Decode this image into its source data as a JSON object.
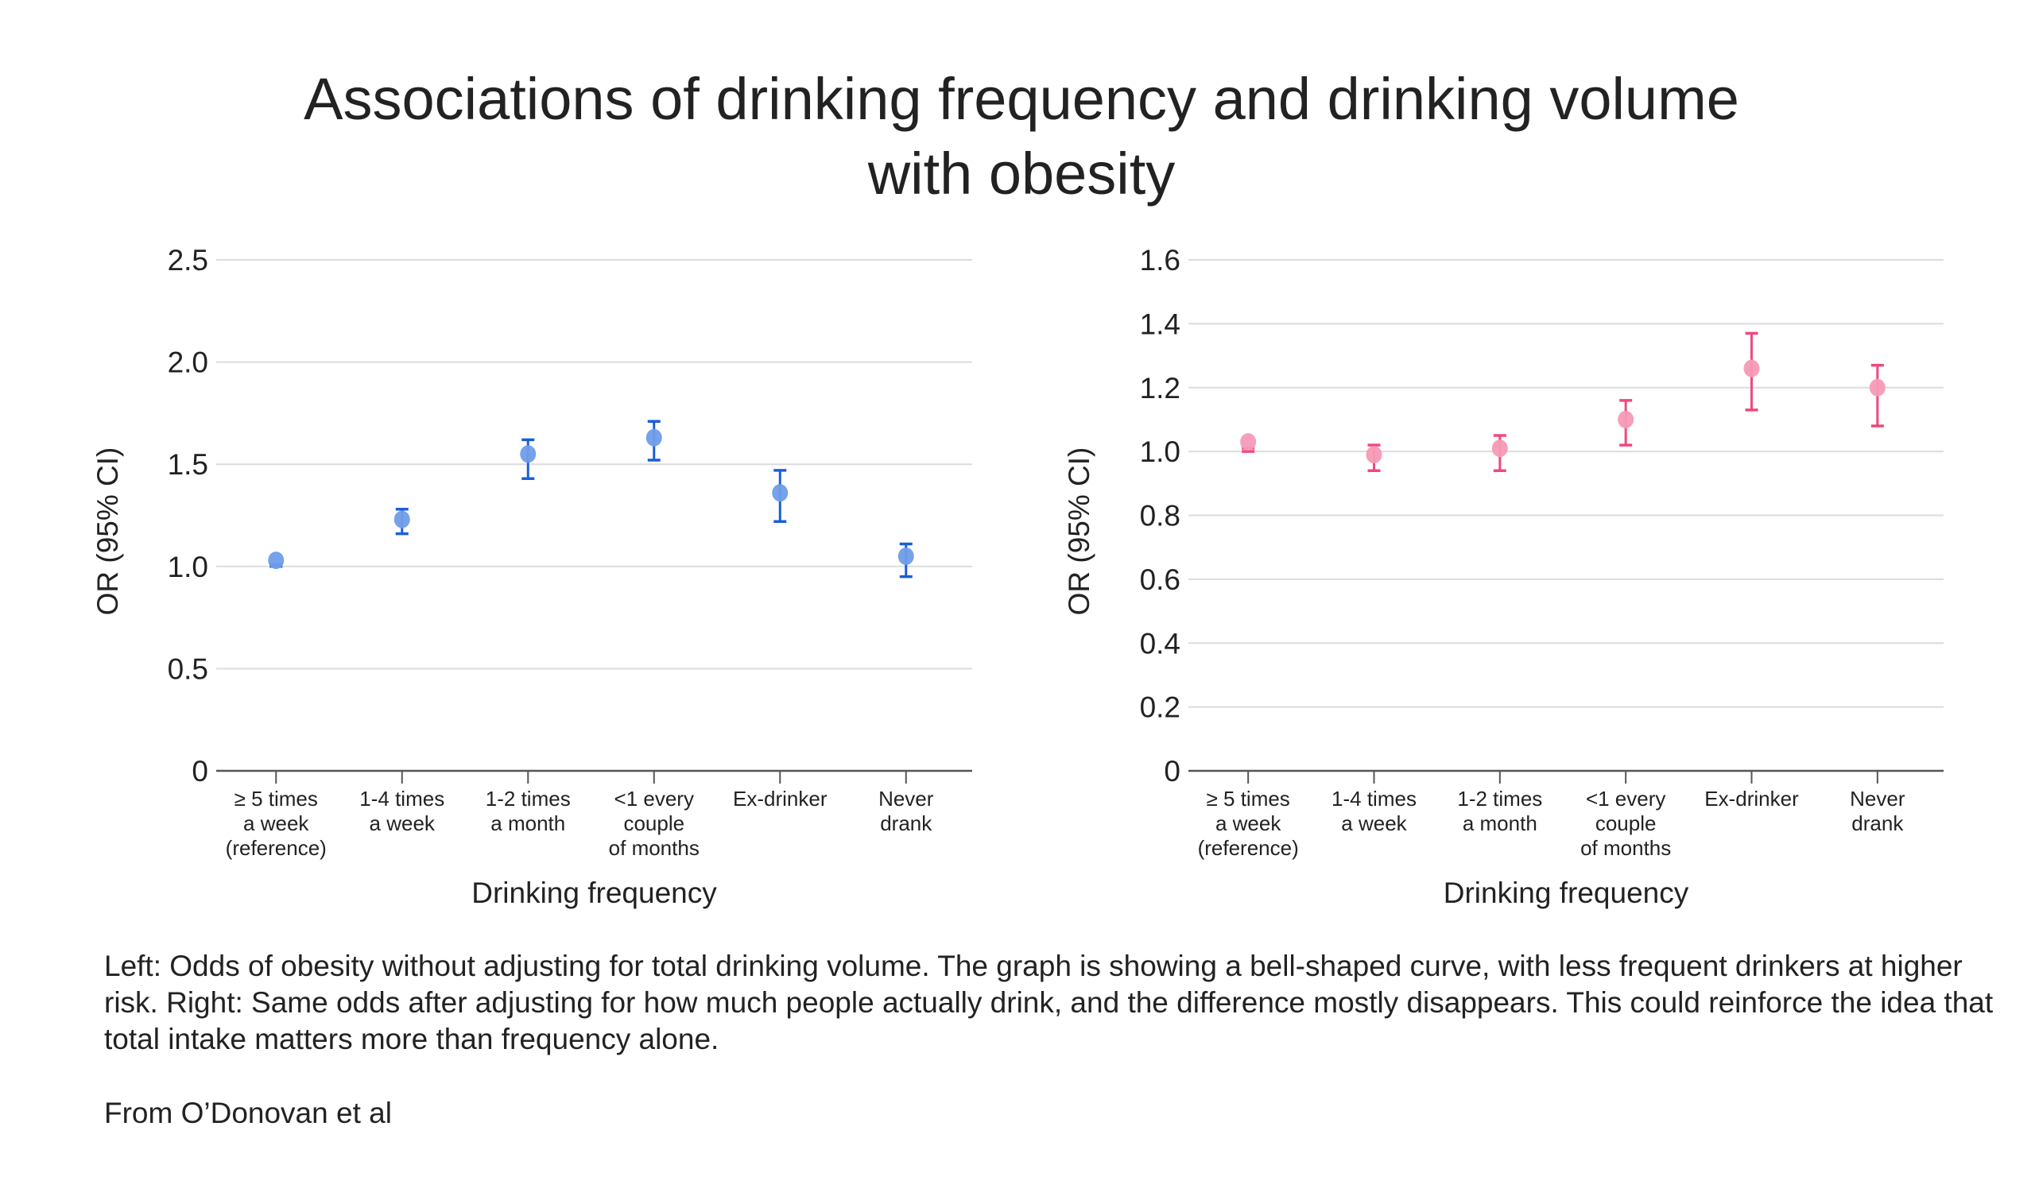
{
  "title_lines": [
    "Associations of drinking frequency and drinking volume",
    "with obesity"
  ],
  "caption": "Left: Odds of obesity without adjusting for total drinking volume. The graph is showing a bell-shaped curve, with less frequent drinkers at higher risk. Right: Same odds after adjusting for how much people actually drink, and the difference mostly disappears. This could reinforce the idea that total intake matters more than frequency alone.",
  "source": "From O’Donovan et al",
  "chart_data": [
    {
      "type": "scatter",
      "subtype": "point-with-error-bars",
      "xlabel": "Drinking frequency",
      "ylabel": "OR (95% CI)",
      "ylim": [
        0,
        2.5
      ],
      "yticks": [
        0,
        0.5,
        1.0,
        1.5,
        2.0,
        2.5
      ],
      "ytick_labels": [
        "0",
        "0.5",
        "1.0",
        "1.5",
        "2.0",
        "2.5"
      ],
      "grid": true,
      "categories": [
        [
          "≥ 5 times",
          "a week",
          "(reference)"
        ],
        [
          "1-4 times",
          "a week"
        ],
        [
          "1-2 times",
          "a month"
        ],
        [
          "<1 every",
          "couple",
          "of months"
        ],
        [
          "Ex-drinker"
        ],
        [
          "Never",
          "drank"
        ]
      ],
      "values": [
        1.03,
        1.23,
        1.55,
        1.63,
        1.36,
        1.05
      ],
      "ci_low": [
        1.0,
        1.16,
        1.43,
        1.52,
        1.22,
        0.95
      ],
      "ci_high": [
        1.01,
        1.28,
        1.62,
        1.71,
        1.47,
        1.11
      ],
      "point_color": "#6f9de9",
      "bar_color": "#1a5fd8"
    },
    {
      "type": "scatter",
      "subtype": "point-with-error-bars",
      "xlabel": "Drinking frequency",
      "ylabel": "OR (95% CI)",
      "ylim": [
        0,
        1.6
      ],
      "yticks": [
        0,
        0.2,
        0.4,
        0.6,
        0.8,
        1.0,
        1.2,
        1.4,
        1.6
      ],
      "ytick_labels": [
        "0",
        "0.2",
        "0.4",
        "0.6",
        "0.8",
        "1.0",
        "1.2",
        "1.4",
        "1.6"
      ],
      "grid": true,
      "categories": [
        [
          "≥ 5 times",
          "a week",
          "(reference)"
        ],
        [
          "1-4 times",
          "a week"
        ],
        [
          "1-2 times",
          "a month"
        ],
        [
          "<1 every",
          "couple",
          "of months"
        ],
        [
          "Ex-drinker"
        ],
        [
          "Never",
          "drank"
        ]
      ],
      "values": [
        1.03,
        0.99,
        1.01,
        1.1,
        1.26,
        1.2
      ],
      "ci_low": [
        1.0,
        0.94,
        0.94,
        1.02,
        1.13,
        1.08
      ],
      "ci_high": [
        1.01,
        1.02,
        1.05,
        1.16,
        1.37,
        1.27
      ],
      "point_color": "#f79ab6",
      "bar_color": "#f0487c"
    }
  ]
}
